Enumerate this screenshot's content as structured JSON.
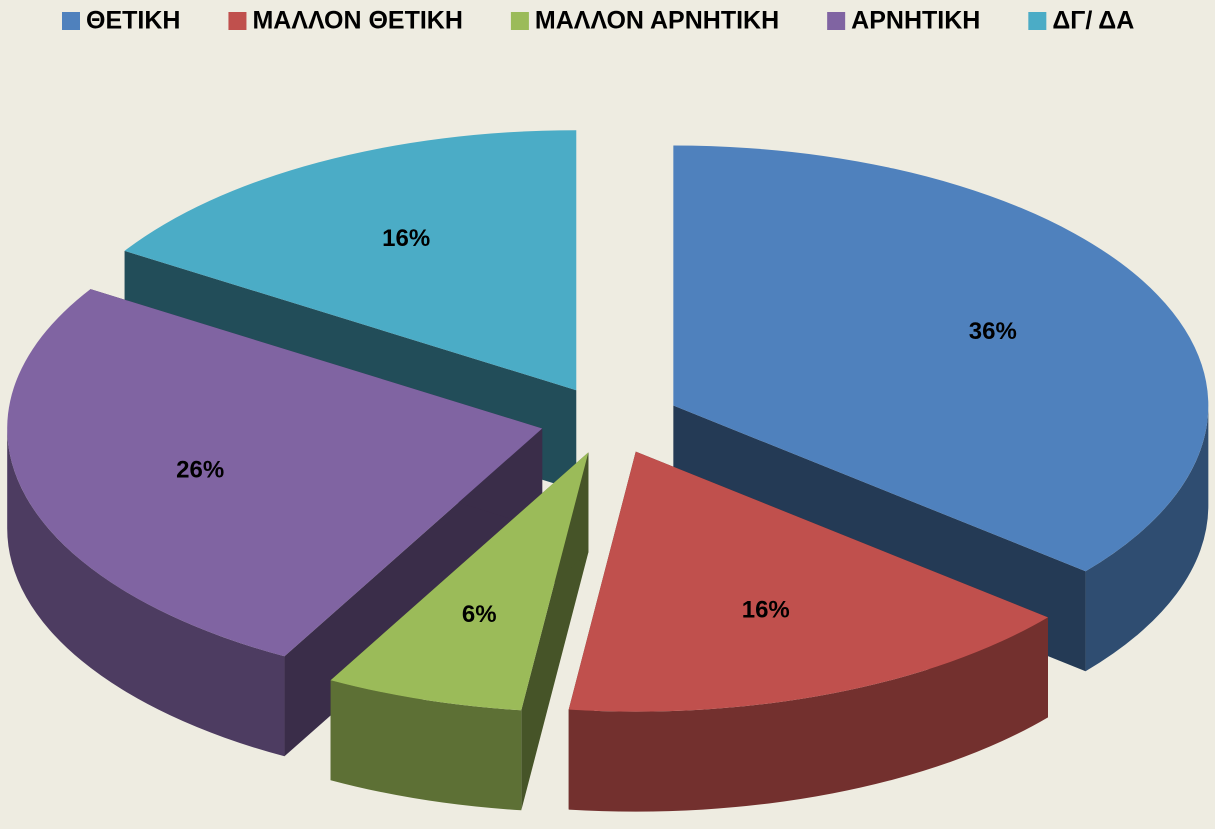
{
  "chart_data": {
    "type": "pie",
    "categories": [
      "ΘΕΤΙΚΗ",
      "ΜΑΛΛΟΝ ΘΕΤΙΚΗ",
      "ΜΑΛΛΟΝ ΑΡΝΗΤΙΚΗ",
      "ΑΡΝΗΤΙΚΗ",
      "ΔΓ/ ΔΑ"
    ],
    "values": [
      36,
      16,
      6,
      26,
      16
    ],
    "value_labels": [
      "36%",
      "16%",
      "6%",
      "26%",
      "16%"
    ],
    "colors": [
      "#4f81bd",
      "#c0504d",
      "#9bbb59",
      "#8064a2",
      "#4bacc6"
    ],
    "legend": "top"
  }
}
